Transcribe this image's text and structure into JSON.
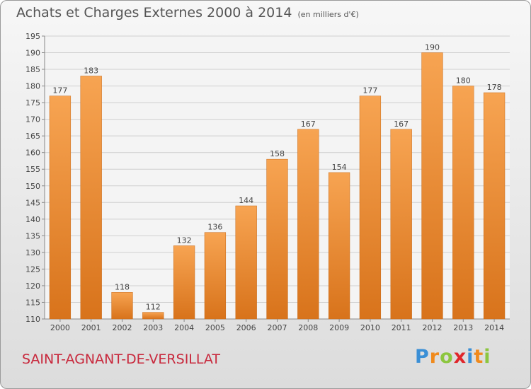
{
  "header": {
    "title": "Achats et Charges Externes 2000 à 2014",
    "unit": "(en milliers d'€)"
  },
  "footer": {
    "commune": "SAINT-AGNANT-DE-VERSILLAT",
    "brand_letters": [
      "P",
      "r",
      "o",
      "x",
      "i",
      "t",
      "i"
    ],
    "brand_colors": [
      "#3a8fd6",
      "#f08a1c",
      "#8cc63f",
      "#e0262b",
      "#3a8fd6",
      "#f08a1c",
      "#8cc63f"
    ]
  },
  "colors": {
    "bar_light": "#f7a452",
    "bar_dark": "#d8731b",
    "grid": "#cfcfcf",
    "text": "#444444"
  },
  "chart_data": {
    "type": "bar",
    "categories": [
      "2000",
      "2001",
      "2002",
      "2003",
      "2004",
      "2005",
      "2006",
      "2007",
      "2008",
      "2009",
      "2010",
      "2011",
      "2012",
      "2013",
      "2014"
    ],
    "values": [
      177,
      183,
      118,
      112,
      132,
      136,
      144,
      158,
      167,
      154,
      177,
      167,
      190,
      180,
      178
    ],
    "data_labels": [
      "177",
      "183",
      "118",
      "112",
      "132",
      "136",
      "144",
      "158",
      "167",
      "154",
      "177",
      "167",
      "190",
      "180",
      "178"
    ],
    "y_ticks": [
      "110",
      "115",
      "120",
      "125",
      "130",
      "135",
      "140",
      "145",
      "150",
      "155",
      "160",
      "165",
      "170",
      "175",
      "180",
      "185",
      "190",
      "195"
    ],
    "ylim": [
      110,
      195
    ],
    "grid": true,
    "legend": "none"
  }
}
